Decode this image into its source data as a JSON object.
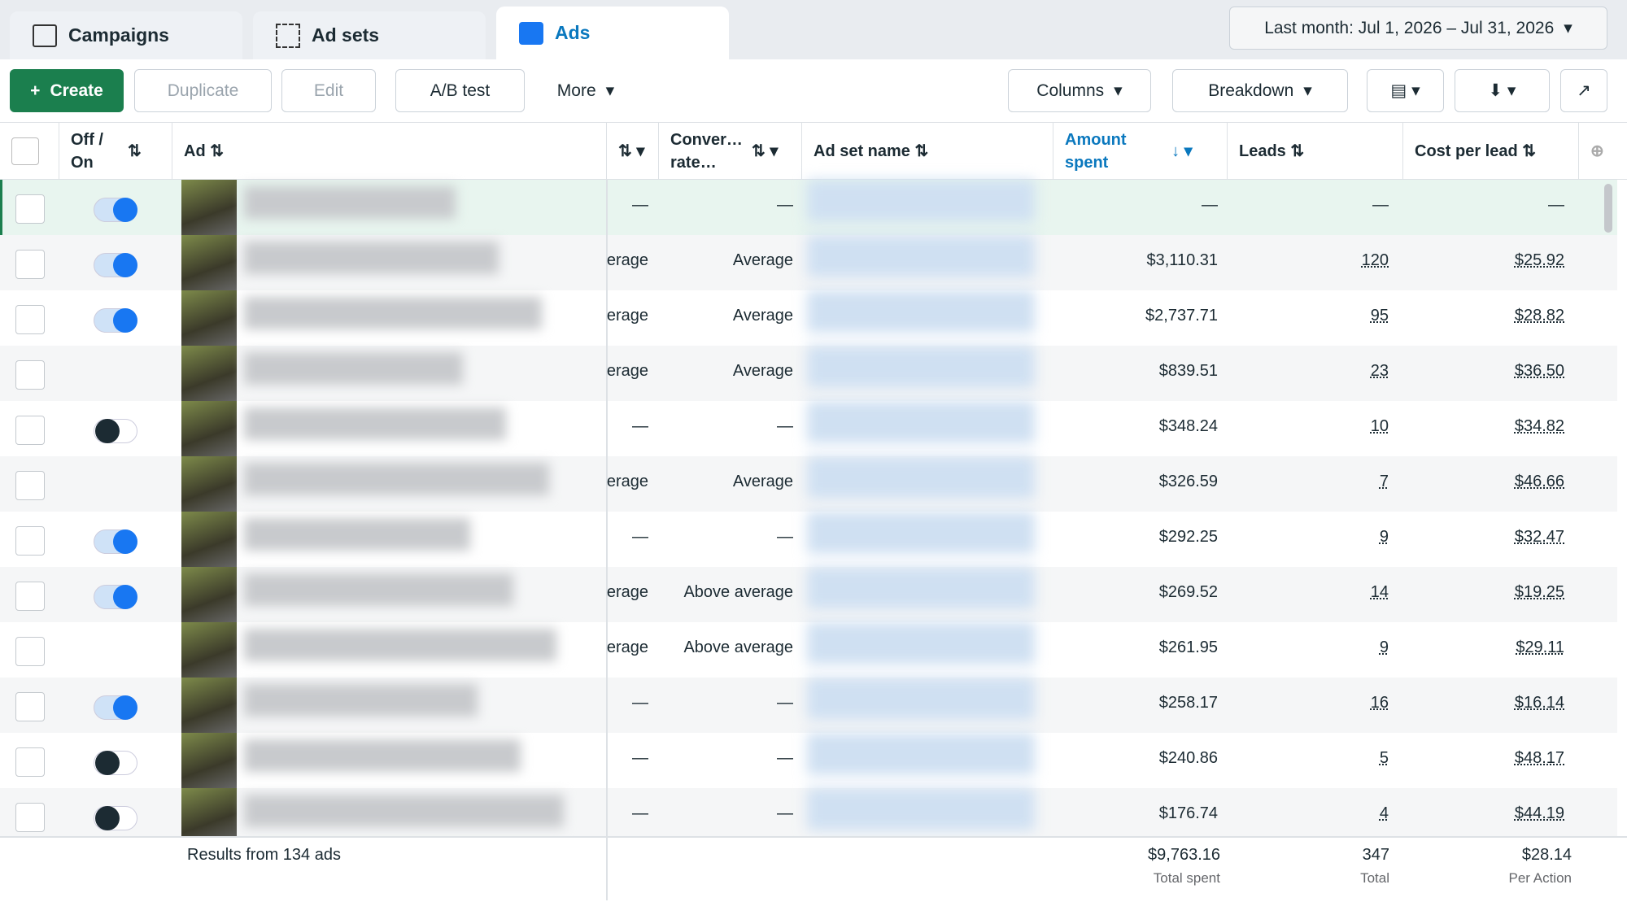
{
  "tabs": [
    "Campaigns",
    "Ad sets",
    "Ads"
  ],
  "date_range": "Last month: Jul 1, 2026 – Jul 31, 2026",
  "toolbar": {
    "create": "Create",
    "duplicate": "Duplicate",
    "edit": "Edit",
    "ab_test": "A/B test",
    "more": "More",
    "columns": "Columns",
    "breakdown": "Breakdown"
  },
  "table": {
    "headers": {
      "status": "Off / On",
      "ad": "Ad",
      "conversion_rate": "Conver… rate…",
      "ad_set_name": "Ad set name",
      "amount_spent": "Amount spent",
      "leads": "Leads",
      "cost_per_lead": "Cost per lead"
    },
    "rows": [
      {
        "status": "on",
        "quality": "—",
        "conversion_rate": "—",
        "amount_spent": "—",
        "leads": "—",
        "cost_per_lead": "—"
      },
      {
        "status": "on",
        "quality": "erage",
        "conversion_rate": "Average",
        "amount_spent": "$3,110.31",
        "leads": "120",
        "cost_per_lead": "$25.92"
      },
      {
        "status": "on",
        "quality": "erage",
        "conversion_rate": "Average",
        "amount_spent": "$2,737.71",
        "leads": "95",
        "cost_per_lead": "$28.82"
      },
      {
        "status": null,
        "quality": "erage",
        "conversion_rate": "Average",
        "amount_spent": "$839.51",
        "leads": "23",
        "cost_per_lead": "$36.50"
      },
      {
        "status": "off",
        "quality": "—",
        "conversion_rate": "—",
        "amount_spent": "$348.24",
        "leads": "10",
        "cost_per_lead": "$34.82"
      },
      {
        "status": null,
        "quality": "erage",
        "conversion_rate": "Average",
        "amount_spent": "$326.59",
        "leads": "7",
        "cost_per_lead": "$46.66"
      },
      {
        "status": "on",
        "quality": "—",
        "conversion_rate": "—",
        "amount_spent": "$292.25",
        "leads": "9",
        "cost_per_lead": "$32.47"
      },
      {
        "status": "on",
        "quality": "erage",
        "conversion_rate": "Above average",
        "amount_spent": "$269.52",
        "leads": "14",
        "cost_per_lead": "$19.25"
      },
      {
        "status": null,
        "quality": "erage",
        "conversion_rate": "Above average",
        "amount_spent": "$261.95",
        "leads": "9",
        "cost_per_lead": "$29.11"
      },
      {
        "status": "on",
        "quality": "—",
        "conversion_rate": "—",
        "amount_spent": "$258.17",
        "leads": "16",
        "cost_per_lead": "$16.14"
      },
      {
        "status": "off",
        "quality": "—",
        "conversion_rate": "—",
        "amount_spent": "$240.86",
        "leads": "5",
        "cost_per_lead": "$48.17"
      },
      {
        "status": "off",
        "quality": "—",
        "conversion_rate": "—",
        "amount_spent": "$176.74",
        "leads": "4",
        "cost_per_lead": "$44.19"
      }
    ],
    "footer": {
      "results": "Results from 134 ads",
      "amount_spent": "$9,763.16",
      "amount_spent_label": "Total spent",
      "leads": "347",
      "leads_label": "Total",
      "cost_per_lead": "$28.14",
      "cost_per_lead_label": "Per Action"
    }
  }
}
